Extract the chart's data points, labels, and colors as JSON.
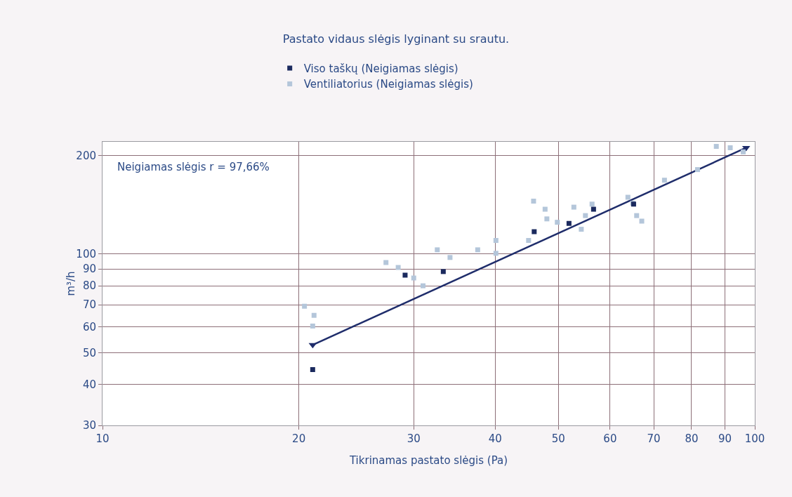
{
  "chart_data": {
    "type": "scatter",
    "title": "Pastato vidaus slėgis lyginant su srautu.",
    "xlabel": "Tikrinamas pastato slėgis (Pa)",
    "ylabel": "m³/h",
    "log": "xy",
    "grid": true,
    "legend": "top",
    "xlim": [
      10,
      100
    ],
    "xticks": [
      10,
      20,
      30,
      40,
      50,
      60,
      70,
      80,
      90,
      100
    ],
    "ylim": [
      30,
      220
    ],
    "yticks": [
      30,
      40,
      50,
      60,
      70,
      80,
      90,
      100,
      200
    ],
    "annotations": [
      "Neigiamas slėgis r = 97,66%"
    ],
    "series": [
      {
        "name": "Viso taškų (Neigiamas slėgis)",
        "marker": "square",
        "color": "#1b2a5e",
        "x": [
          21.0,
          29.1,
          33.3,
          45.9,
          51.9,
          56.6,
          65.2
        ],
        "values": [
          44.4,
          86.2,
          88.4,
          117,
          124,
          137,
          142
        ]
      },
      {
        "name": "Ventiliatorius (Neigiamas slėgis)",
        "marker": "square",
        "color": "#b4c6da",
        "x": [
          20.4,
          21.1,
          21.0,
          27.2,
          28.4,
          30.0,
          31.0,
          32.6,
          34.1,
          37.6,
          40.1,
          40.1,
          45.0,
          45.8,
          47.7,
          48.0,
          49.8,
          52.8,
          54.2,
          55.0,
          56.3,
          63.9,
          65.0,
          65.9,
          67.1,
          72.7,
          81.7,
          87.3,
          91.7,
          96.0
        ],
        "values": [
          69.3,
          65,
          60.3,
          94.2,
          91,
          84.5,
          80,
          103,
          97.6,
          103,
          110,
          100.5,
          110,
          145,
          137,
          128,
          125,
          139,
          119,
          131,
          142,
          149,
          143,
          131,
          126,
          168,
          181,
          213,
          211,
          205
        ]
      },
      {
        "type": "line",
        "marker": "triangle",
        "line_style": "solid",
        "color": "#1f2d6b",
        "x": [
          21.0,
          97.0
        ],
        "values": [
          52.8,
          211
        ]
      }
    ]
  }
}
